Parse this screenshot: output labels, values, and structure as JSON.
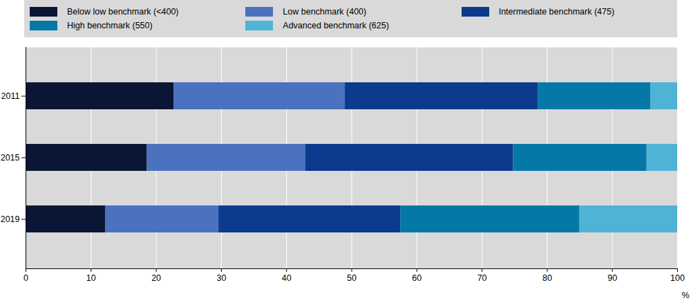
{
  "chart_data": {
    "type": "bar",
    "orientation": "horizontal",
    "stacked": true,
    "categories": [
      "2011",
      "2015",
      "2019"
    ],
    "series": [
      {
        "name": "Below low benchmark (<400)",
        "color": "#0b1636",
        "values": [
          22.7,
          18.6,
          12.2
        ]
      },
      {
        "name": "Low benchmark (400)",
        "color": "#4a72be",
        "values": [
          26.3,
          24.3,
          17.4
        ]
      },
      {
        "name": "Intermediate benchmark (475)",
        "color": "#0c3a8c",
        "values": [
          29.6,
          31.9,
          27.9
        ]
      },
      {
        "name": "High benchmark (550)",
        "color": "#0678a8",
        "values": [
          17.3,
          20.5,
          27.5
        ]
      },
      {
        "name": "Advanced benchmark (625)",
        "color": "#4fb3d6",
        "values": [
          4.1,
          4.7,
          15.0
        ]
      }
    ],
    "xlabel": "%",
    "xlim": [
      0,
      100
    ],
    "xticks": [
      0,
      10,
      20,
      30,
      40,
      50,
      60,
      70,
      80,
      90,
      100
    ],
    "grid": true,
    "legend": "top"
  }
}
